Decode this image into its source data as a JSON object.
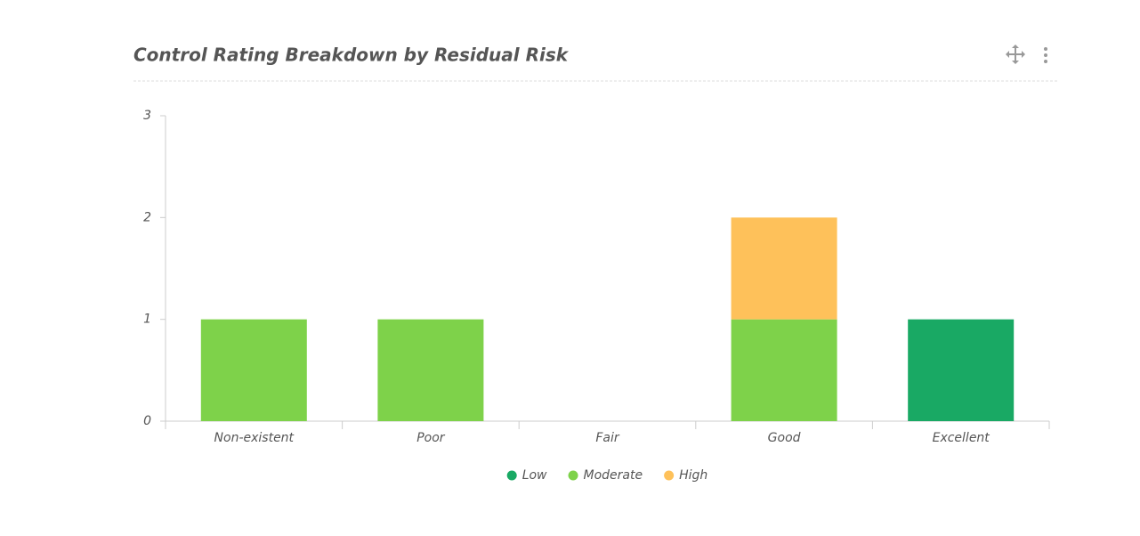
{
  "chart_data": {
    "type": "bar",
    "stacked": true,
    "title": "Control Rating Breakdown by Residual Risk",
    "categories": [
      "Non-existent",
      "Poor",
      "Fair",
      "Good",
      "Excellent"
    ],
    "series": [
      {
        "name": "Low",
        "color": "#19a964",
        "values": [
          0,
          0,
          0,
          0,
          1
        ]
      },
      {
        "name": "Moderate",
        "color": "#7ed24a",
        "values": [
          1,
          1,
          0,
          1,
          0
        ]
      },
      {
        "name": "High",
        "color": "#fec15a",
        "values": [
          0,
          0,
          0,
          1,
          0
        ]
      }
    ],
    "ylim": [
      0,
      3
    ],
    "yticks": [
      0,
      1,
      2,
      3
    ],
    "grid": false,
    "legend": "bottom"
  }
}
